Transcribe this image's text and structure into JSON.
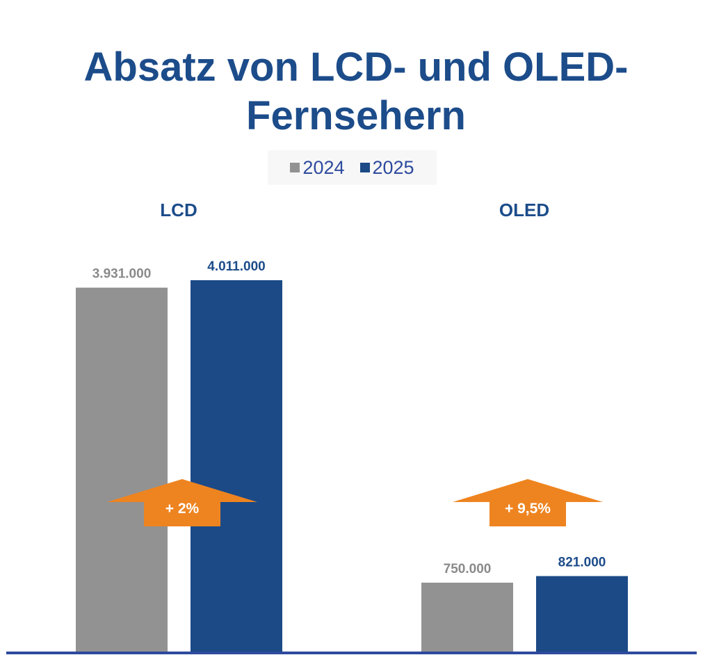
{
  "chart_data": {
    "type": "bar",
    "title_lines": [
      "Absatz von LCD- und OLED-",
      "Fernsehern"
    ],
    "categories": [
      "LCD",
      "OLED"
    ],
    "series": [
      {
        "name": "2024",
        "color": "#929292",
        "label_color": "#8a8a8a",
        "values": [
          3931000,
          750000
        ],
        "labels": [
          "3.931.000",
          "750.000"
        ]
      },
      {
        "name": "2025",
        "color": "#1b4a87",
        "label_color": "#1c4c8a",
        "values": [
          4011000,
          821000
        ],
        "labels": [
          "4.011.000",
          "821.000"
        ]
      }
    ],
    "changes": [
      {
        "category": "LCD",
        "label": "+ 2%"
      },
      {
        "category": "OLED",
        "label": "+ 9,5%"
      }
    ],
    "change_color": "#ee8420",
    "axis_color": "#2e4a9e",
    "ylim": [
      0,
      4011000
    ],
    "grid": false,
    "legend_position": "top-center",
    "xlabel": "",
    "ylabel": ""
  }
}
